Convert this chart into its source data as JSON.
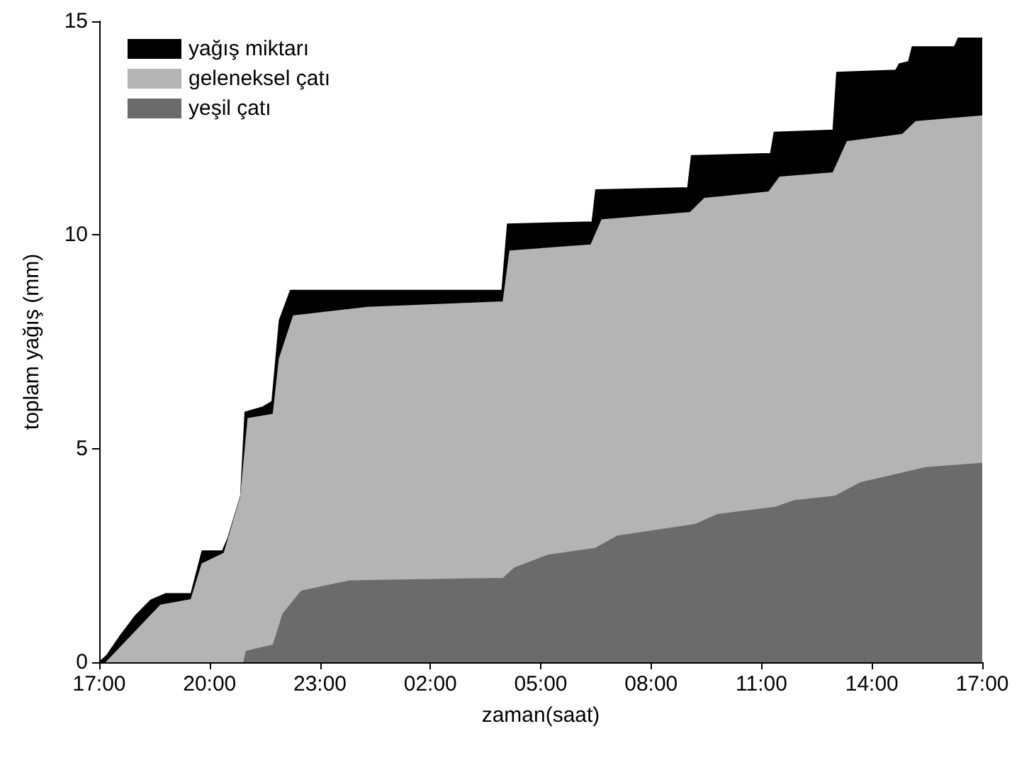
{
  "chart_data": {
    "type": "area",
    "xlabel": "zaman(saat)",
    "ylabel": "toplam yağış (mm)",
    "xlim": [
      "2000-01-01T17:00",
      "2000-01-02T17:00"
    ],
    "xticks": [
      {
        "value": "2000-01-01T17:00",
        "label": "17:00"
      },
      {
        "value": "2000-01-01T20:00",
        "label": "20:00"
      },
      {
        "value": "2000-01-01T23:00",
        "label": "23:00"
      },
      {
        "value": "2000-01-02T02:00",
        "label": "02:00"
      },
      {
        "value": "2000-01-02T05:00",
        "label": "05:00"
      },
      {
        "value": "2000-01-02T08:00",
        "label": "08:00"
      },
      {
        "value": "2000-01-02T11:00",
        "label": "11:00"
      },
      {
        "value": "2000-01-02T14:00",
        "label": "14:00"
      },
      {
        "value": "2000-01-02T17:00",
        "label": "17:00"
      }
    ],
    "ylim": [
      0,
      15
    ],
    "yticks": [
      0,
      5,
      10,
      15
    ],
    "grid": false,
    "legend": "top left",
    "series": [
      {
        "name": "yağış miktarı",
        "color": "#000000",
        "x": [
          "2000-01-01T17:00",
          "2000-01-01T17:12",
          "2000-01-01T17:36",
          "2000-01-01T18:00",
          "2000-01-01T18:24",
          "2000-01-01T18:48",
          "2000-01-01T19:30",
          "2000-01-01T19:48",
          "2000-01-01T20:21",
          "2000-01-01T20:30",
          "2000-01-01T20:51",
          "2000-01-01T20:58",
          "2000-01-01T21:27",
          "2000-01-01T21:42",
          "2000-01-01T21:54",
          "2000-01-01T22:12",
          "2000-01-02T03:57",
          "2000-01-02T04:06",
          "2000-01-02T06:24",
          "2000-01-02T06:30",
          "2000-01-02T09:00",
          "2000-01-02T09:06",
          "2000-01-02T11:15",
          "2000-01-02T11:21",
          "2000-01-02T12:57",
          "2000-01-02T13:03",
          "2000-01-02T14:39",
          "2000-01-02T14:45",
          "2000-01-02T15:00",
          "2000-01-02T15:06",
          "2000-01-02T16:15",
          "2000-01-02T16:21",
          "2000-01-02T17:00"
        ],
        "values": [
          0,
          0.15,
          0.65,
          1.1,
          1.45,
          1.6,
          1.6,
          2.6,
          2.6,
          2.9,
          3.9,
          5.85,
          5.97,
          6.1,
          8.0,
          8.7,
          8.7,
          10.25,
          10.3,
          11.05,
          11.1,
          11.85,
          11.9,
          12.4,
          12.45,
          13.8,
          13.85,
          14.0,
          14.05,
          14.4,
          14.4,
          14.6,
          14.6
        ]
      },
      {
        "name": "geleneksel çatı",
        "color": "#b4b4b4",
        "x": [
          "2000-01-01T17:12",
          "2000-01-01T18:40",
          "2000-01-01T19:30",
          "2000-01-01T19:48",
          "2000-01-01T20:24",
          "2000-01-01T20:51",
          "2000-01-01T21:03",
          "2000-01-01T21:44",
          "2000-01-01T21:54",
          "2000-01-01T22:17",
          "2000-01-02T00:18",
          "2000-01-02T03:59",
          "2000-01-02T04:10",
          "2000-01-02T06:22",
          "2000-01-02T06:40",
          "2000-01-02T09:04",
          "2000-01-02T09:27",
          "2000-01-02T11:12",
          "2000-01-02T11:30",
          "2000-01-02T12:57",
          "2000-01-02T13:20",
          "2000-01-02T14:50",
          "2000-01-02T15:12",
          "2000-01-02T17:00"
        ],
        "values": [
          0,
          1.33,
          1.46,
          2.3,
          2.55,
          3.88,
          5.7,
          5.8,
          7.1,
          8.1,
          8.3,
          8.43,
          9.62,
          9.76,
          10.35,
          10.52,
          10.85,
          11.0,
          11.35,
          11.45,
          12.18,
          12.35,
          12.65,
          12.78
        ]
      },
      {
        "name": "yeşil çatı",
        "color": "#6b6b6b",
        "x": [
          "2000-01-01T20:56",
          "2000-01-01T21:00",
          "2000-01-01T21:14",
          "2000-01-01T21:44",
          "2000-01-01T22:00",
          "2000-01-01T22:30",
          "2000-01-01T23:48",
          "2000-01-02T03:59",
          "2000-01-02T04:17",
          "2000-01-02T05:12",
          "2000-01-02T06:29",
          "2000-01-02T07:06",
          "2000-01-02T09:12",
          "2000-01-02T09:48",
          "2000-01-02T11:22",
          "2000-01-02T11:54",
          "2000-01-02T13:00",
          "2000-01-02T13:42",
          "2000-01-02T14:58",
          "2000-01-02T15:28",
          "2000-01-02T17:00"
        ],
        "values": [
          0,
          0.25,
          0.3,
          0.4,
          1.13,
          1.66,
          1.9,
          1.96,
          2.2,
          2.5,
          2.66,
          2.95,
          3.22,
          3.45,
          3.62,
          3.78,
          3.88,
          4.2,
          4.45,
          4.55,
          4.65
        ]
      }
    ]
  }
}
